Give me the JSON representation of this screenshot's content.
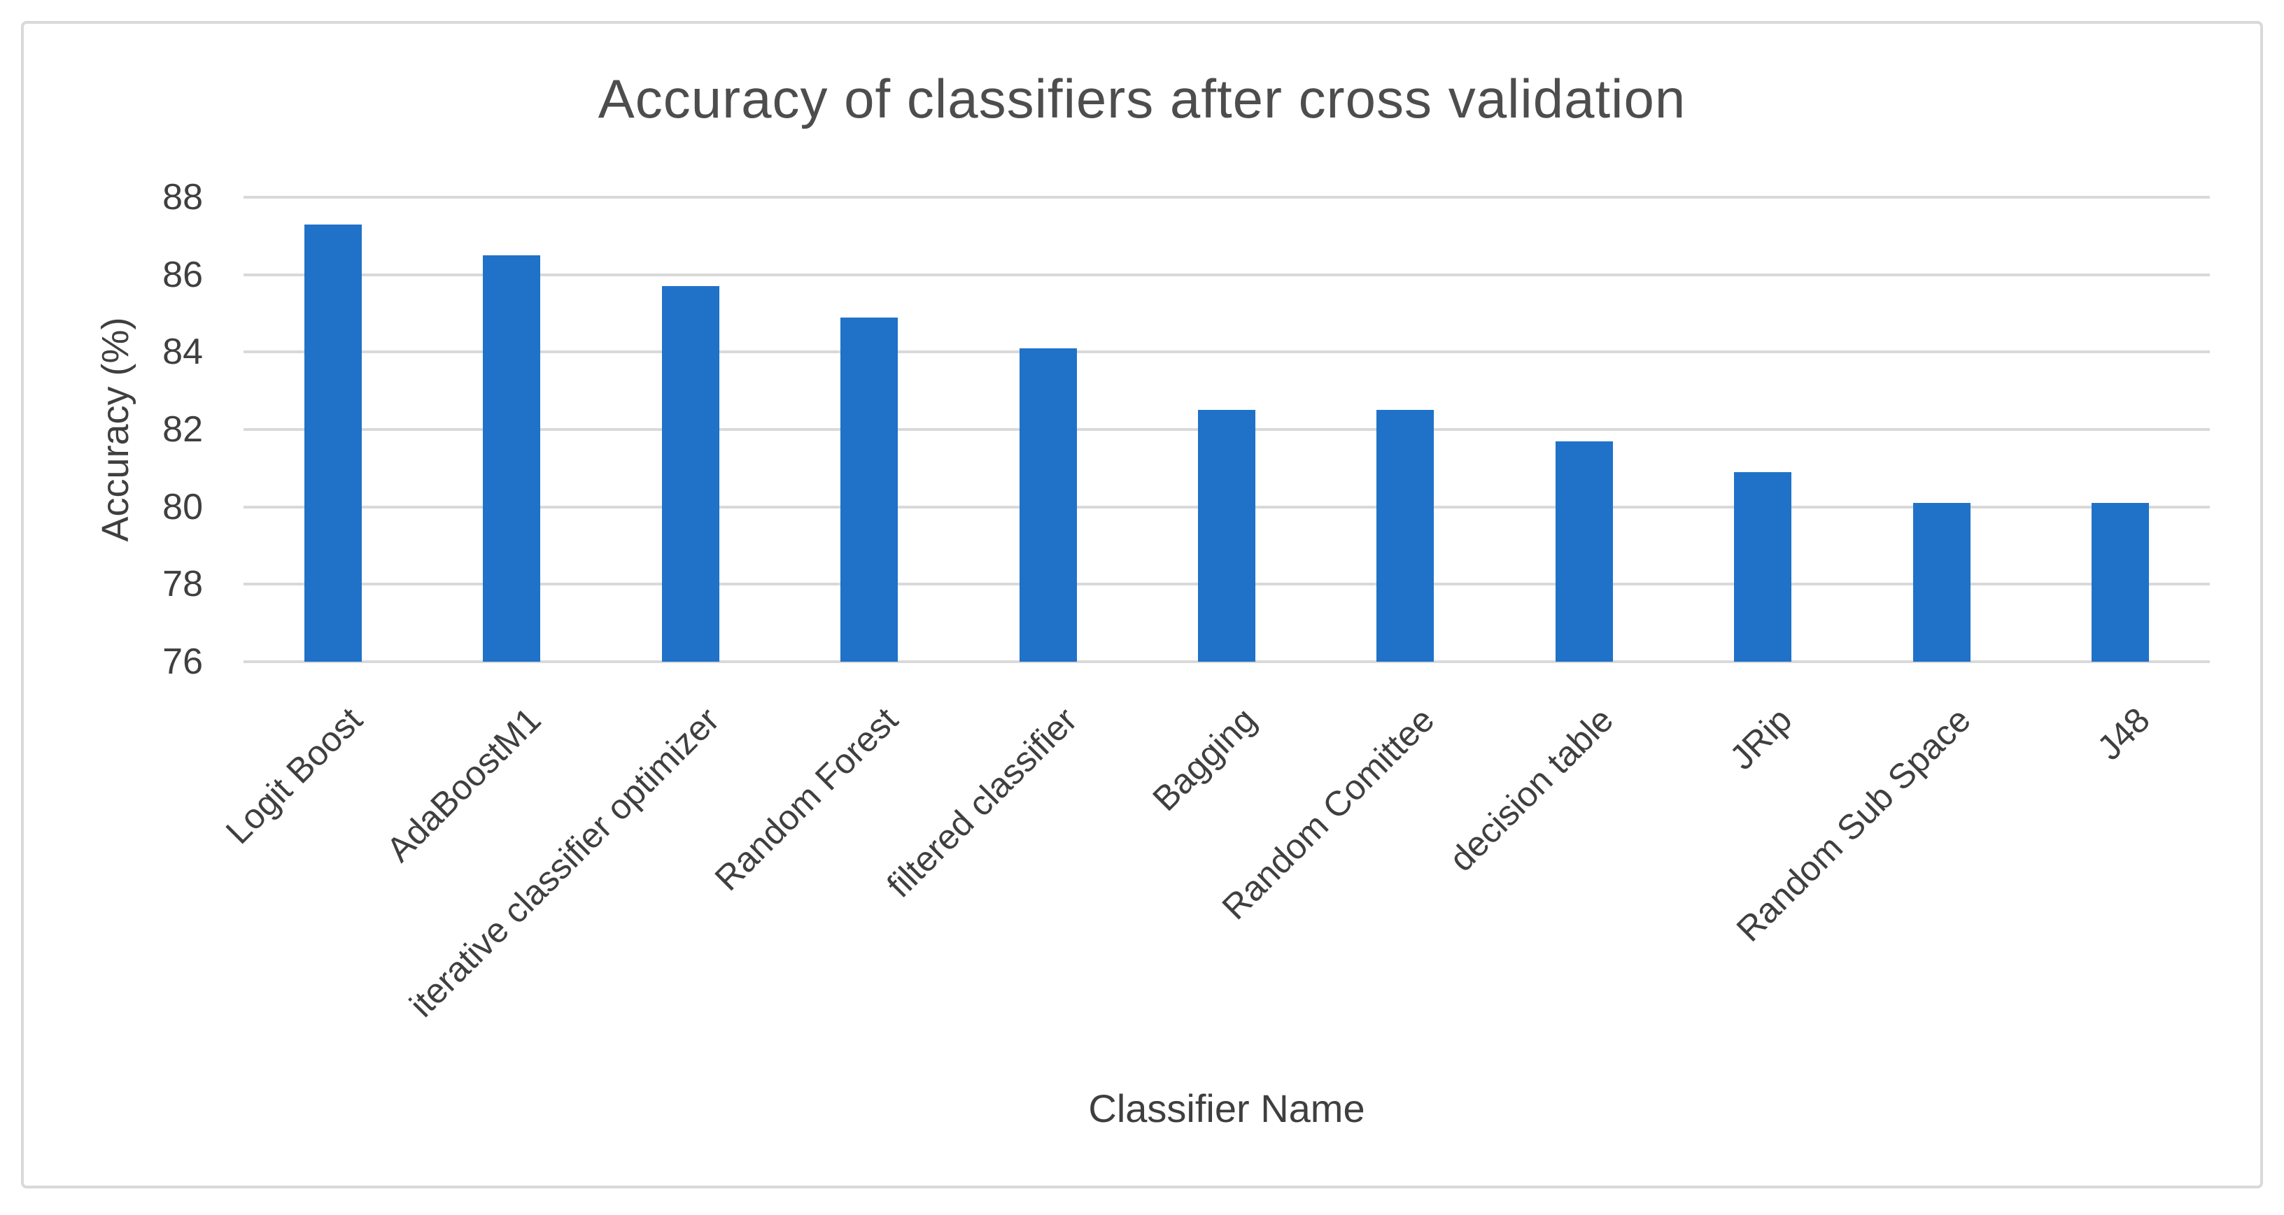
{
  "chart_data": {
    "type": "bar",
    "title": "Accuracy of classifiers after cross validation",
    "xlabel": "Classifier Name",
    "ylabel": "Accuracy (%)",
    "categories": [
      "Logit Boost",
      "AdaBoostM1",
      "iterative classifier optimizer",
      "Random Forest",
      "filtered classifier",
      "Bagging",
      "Random Comittee",
      "decision table",
      "JRip",
      "Random Sub Space",
      "J48"
    ],
    "values": [
      87.3,
      86.5,
      85.7,
      84.9,
      84.1,
      82.5,
      82.5,
      81.7,
      80.9,
      80.1,
      80.1
    ],
    "ylim": [
      76,
      88
    ],
    "yticks": [
      88,
      86,
      84,
      82,
      80,
      78,
      76
    ],
    "grid": true,
    "legend": "none",
    "colors": {
      "bar": "#1f72c8",
      "gridline": "#d9d9d9",
      "frame_border": "#d9d9d9",
      "tick_text": "#3f3f3f",
      "title_text": "#4d4d4d"
    }
  }
}
